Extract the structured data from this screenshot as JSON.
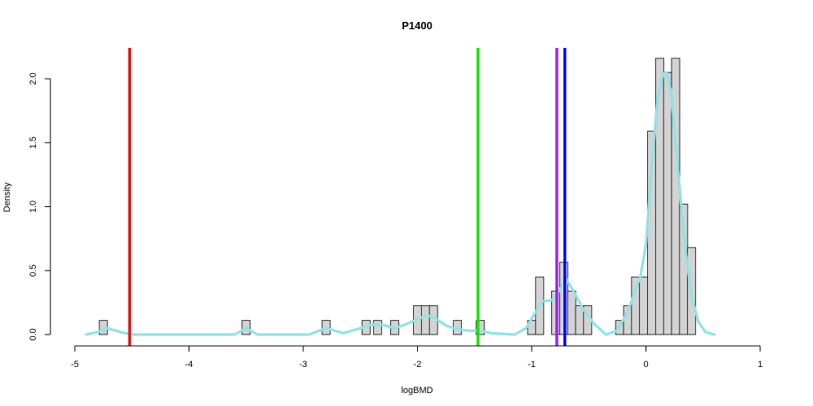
{
  "chart_data": {
    "type": "histogram",
    "title": "P1400",
    "xlabel": "logBMD",
    "ylabel": "Density",
    "xlim": [
      -5,
      1
    ],
    "ylim": [
      0,
      2.25
    ],
    "x_ticks": [
      "-5",
      "-4",
      "-3",
      "-2",
      "-1",
      "0",
      "1"
    ],
    "y_ticks": [
      "0.0",
      "0.5",
      "1.0",
      "1.5",
      "2.0"
    ],
    "bin_width": 0.0714,
    "bars": [
      {
        "x": -4.75,
        "y": 0.11
      },
      {
        "x": -3.5,
        "y": 0.11
      },
      {
        "x": -2.8,
        "y": 0.11
      },
      {
        "x": -2.45,
        "y": 0.11
      },
      {
        "x": -2.35,
        "y": 0.11
      },
      {
        "x": -2.2,
        "y": 0.11
      },
      {
        "x": -2.0,
        "y": 0.225
      },
      {
        "x": -1.93,
        "y": 0.225
      },
      {
        "x": -1.86,
        "y": 0.225
      },
      {
        "x": -1.65,
        "y": 0.11
      },
      {
        "x": -1.45,
        "y": 0.11
      },
      {
        "x": -1.0,
        "y": 0.11
      },
      {
        "x": -0.93,
        "y": 0.45
      },
      {
        "x": -0.79,
        "y": 0.34
      },
      {
        "x": -0.72,
        "y": 0.565
      },
      {
        "x": -0.65,
        "y": 0.34
      },
      {
        "x": -0.58,
        "y": 0.225
      },
      {
        "x": -0.51,
        "y": 0.225
      },
      {
        "x": -0.23,
        "y": 0.11
      },
      {
        "x": -0.16,
        "y": 0.225
      },
      {
        "x": -0.09,
        "y": 0.45
      },
      {
        "x": -0.02,
        "y": 0.45
      },
      {
        "x": 0.05,
        "y": 1.59
      },
      {
        "x": 0.12,
        "y": 2.16
      },
      {
        "x": 0.19,
        "y": 2.05
      },
      {
        "x": 0.26,
        "y": 2.16
      },
      {
        "x": 0.33,
        "y": 1.02
      },
      {
        "x": 0.4,
        "y": 0.68
      }
    ],
    "density_curve": {
      "color": "#8fe3e6",
      "points": [
        [
          -4.9,
          0.0
        ],
        [
          -4.8,
          0.02
        ],
        [
          -4.72,
          0.05
        ],
        [
          -4.6,
          0.02
        ],
        [
          -4.5,
          0.0
        ],
        [
          -3.6,
          0.0
        ],
        [
          -3.5,
          0.05
        ],
        [
          -3.4,
          0.0
        ],
        [
          -2.95,
          0.0
        ],
        [
          -2.8,
          0.05
        ],
        [
          -2.65,
          0.01
        ],
        [
          -2.5,
          0.05
        ],
        [
          -2.4,
          0.08
        ],
        [
          -2.3,
          0.075
        ],
        [
          -2.2,
          0.05
        ],
        [
          -2.1,
          0.08
        ],
        [
          -2.0,
          0.12
        ],
        [
          -1.92,
          0.15
        ],
        [
          -1.85,
          0.13
        ],
        [
          -1.75,
          0.07
        ],
        [
          -1.65,
          0.04
        ],
        [
          -1.55,
          0.03
        ],
        [
          -1.45,
          0.03
        ],
        [
          -1.35,
          0.01
        ],
        [
          -1.15,
          0.0
        ],
        [
          -1.05,
          0.05
        ],
        [
          -0.97,
          0.17
        ],
        [
          -0.9,
          0.26
        ],
        [
          -0.82,
          0.27
        ],
        [
          -0.76,
          0.34
        ],
        [
          -0.7,
          0.44
        ],
        [
          -0.64,
          0.35
        ],
        [
          -0.55,
          0.2
        ],
        [
          -0.45,
          0.08
        ],
        [
          -0.35,
          0.0
        ],
        [
          -0.25,
          0.03
        ],
        [
          -0.15,
          0.2
        ],
        [
          -0.05,
          0.45
        ],
        [
          0.0,
          0.7
        ],
        [
          0.05,
          1.3
        ],
        [
          0.1,
          1.82
        ],
        [
          0.15,
          2.04
        ],
        [
          0.18,
          2.05
        ],
        [
          0.22,
          1.9
        ],
        [
          0.28,
          1.3
        ],
        [
          0.34,
          0.7
        ],
        [
          0.4,
          0.3
        ],
        [
          0.46,
          0.1
        ],
        [
          0.52,
          0.02
        ],
        [
          0.6,
          0.0
        ]
      ]
    },
    "vlines": [
      {
        "x": -4.52,
        "color": "#e8110c"
      },
      {
        "x": -1.47,
        "color": "#11e800"
      },
      {
        "x": -0.78,
        "color": "#a020f0"
      },
      {
        "x": -0.71,
        "color": "#0000ff"
      }
    ]
  }
}
